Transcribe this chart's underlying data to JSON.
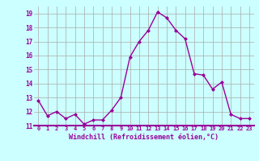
{
  "x": [
    0,
    1,
    2,
    3,
    4,
    5,
    6,
    7,
    8,
    9,
    10,
    11,
    12,
    13,
    14,
    15,
    16,
    17,
    18,
    19,
    20,
    21,
    22,
    23
  ],
  "y": [
    12.8,
    11.7,
    12.0,
    11.5,
    11.8,
    11.1,
    11.4,
    11.4,
    12.1,
    13.0,
    15.9,
    17.0,
    17.8,
    19.1,
    18.7,
    17.8,
    17.2,
    14.7,
    14.6,
    13.6,
    14.1,
    11.8,
    11.5,
    11.5
  ],
  "line_color": "#990099",
  "marker": "D",
  "marker_size": 2,
  "bg_color": "#ccffff",
  "grid_color": "#aaaaaa",
  "xlabel": "Windchill (Refroidissement éolien,°C)",
  "xlabel_color": "#990099",
  "tick_color": "#990099",
  "ylim": [
    11,
    19.5
  ],
  "xlim": [
    -0.5,
    23.5
  ],
  "yticks": [
    11,
    12,
    13,
    14,
    15,
    16,
    17,
    18,
    19
  ],
  "xticks": [
    0,
    1,
    2,
    3,
    4,
    5,
    6,
    7,
    8,
    9,
    10,
    11,
    12,
    13,
    14,
    15,
    16,
    17,
    18,
    19,
    20,
    21,
    22,
    23
  ],
  "xtick_labels": [
    "0",
    "1",
    "2",
    "3",
    "4",
    "5",
    "6",
    "7",
    "8",
    "9",
    "10",
    "11",
    "12",
    "13",
    "14",
    "15",
    "16",
    "17",
    "18",
    "19",
    "20",
    "21",
    "22",
    "23"
  ],
  "line_width": 1.0,
  "tick_fontsize": 5.0,
  "xlabel_fontsize": 6.0
}
